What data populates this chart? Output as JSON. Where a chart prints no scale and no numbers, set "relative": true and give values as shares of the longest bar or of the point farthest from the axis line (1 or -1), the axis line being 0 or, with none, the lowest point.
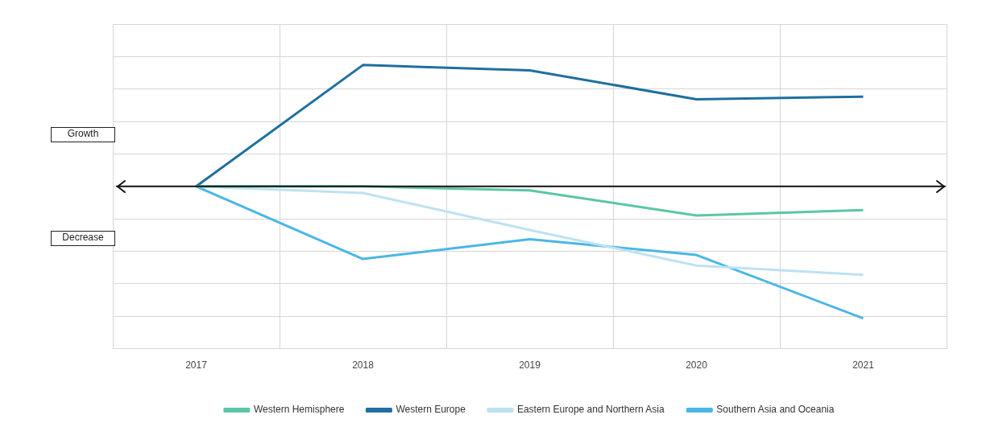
{
  "chart_data": {
    "type": "line",
    "relative": true,
    "categories": [
      "2017",
      "2018",
      "2019",
      "2020",
      "2021"
    ],
    "series": [
      {
        "name": "Western Hemisphere",
        "color": "#5cc5a8",
        "values": [
          0,
          0,
          -0.03,
          -0.22,
          -0.18
        ]
      },
      {
        "name": "Western Europe",
        "color": "#1f6fa0",
        "values": [
          0,
          0.92,
          0.88,
          0.66,
          0.68
        ]
      },
      {
        "name": "Eastern Europe and Northern Asia",
        "color": "#bde2f2",
        "values": [
          0,
          -0.05,
          -0.33,
          -0.6,
          -0.67
        ]
      },
      {
        "name": "Southern Asia and Oceania",
        "color": "#4bb6e6",
        "values": [
          0,
          -0.55,
          -0.4,
          -0.52,
          -1
        ]
      }
    ],
    "annotations": [
      "Growth",
      "Decrease"
    ],
    "ref_lines": [
      {
        "axis": "y",
        "value": 0,
        "color": "#111111"
      }
    ],
    "grid": true,
    "legend": "bottom",
    "marker": "none",
    "line_style": "solid"
  }
}
